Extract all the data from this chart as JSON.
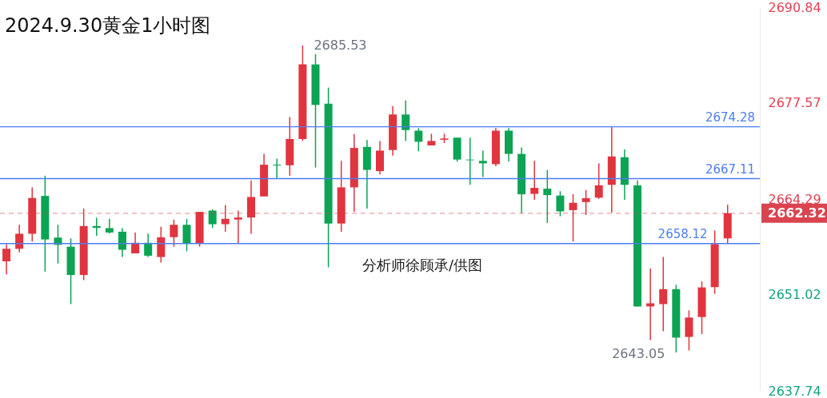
{
  "chart_data": {
    "type": "candlestick",
    "title": "2024.9.30黄金1小时图",
    "categories": [
      null,
      null,
      null,
      null,
      null,
      null,
      null,
      null,
      null,
      null,
      null,
      null,
      null,
      null,
      null,
      null,
      null,
      null,
      null,
      null,
      null,
      null,
      null,
      null,
      null,
      null,
      null,
      null,
      null,
      null,
      null,
      null,
      null,
      null,
      null,
      null,
      null,
      null,
      null,
      null,
      null,
      null,
      null,
      null,
      null,
      null,
      null,
      null,
      null,
      null,
      null,
      null,
      null,
      null,
      null,
      null,
      null
    ],
    "ohlc": [
      [
        2655.66,
        2658.05,
        2653.87,
        2657.4
      ],
      [
        2657.4,
        2660.72,
        2656.91,
        2659.48
      ],
      [
        2659.48,
        2665.9,
        2658.41,
        2664.43
      ],
      [
        2664.72,
        2667.51,
        2654.24,
        2658.69
      ],
      [
        2658.95,
        2660.72,
        2655.37,
        2657.94
      ],
      [
        2657.69,
        2658.84,
        2649.74,
        2653.77
      ],
      [
        2653.77,
        2662.97,
        2653.06,
        2660.55
      ],
      [
        2660.55,
        2661.68,
        2659.19,
        2660.29
      ],
      [
        2660.26,
        2661.55,
        2659.54,
        2659.65
      ],
      [
        2659.76,
        2660.26,
        2656.26,
        2657.26
      ],
      [
        2656.76,
        2659.65,
        2656.76,
        2658.23
      ],
      [
        2658.23,
        2659.48,
        2656.26,
        2656.44
      ],
      [
        2656.26,
        2660.44,
        2655.48,
        2658.98
      ],
      [
        2659.01,
        2661.44,
        2657.69,
        2660.72
      ],
      [
        2660.72,
        2661.55,
        2657.05,
        2658.12
      ],
      [
        2658.12,
        2662.51,
        2657.69,
        2662.51
      ],
      [
        2662.69,
        2662.86,
        2660.29,
        2660.8
      ],
      [
        2660.8,
        2663.47,
        2659.76,
        2661.55
      ],
      [
        2661.44,
        2662.69,
        2658.12,
        2661.73
      ],
      [
        2661.73,
        2666.86,
        2659.48,
        2664.57
      ],
      [
        2664.65,
        2670.53,
        2664.65,
        2669.04
      ],
      [
        2669.04,
        2669.89,
        2667.14,
        2668.93
      ],
      [
        2668.96,
        2675.64,
        2667.51,
        2672.6
      ],
      [
        2672.6,
        2685.53,
        2672.32,
        2682.92
      ],
      [
        2682.92,
        2684.34,
        2668.64,
        2677.31
      ],
      [
        2677.49,
        2679.71,
        2654.84,
        2660.9
      ],
      [
        2660.9,
        2669.57,
        2659.76,
        2665.9
      ],
      [
        2665.9,
        2673.28,
        2662.51,
        2671.36
      ],
      [
        2671.5,
        2672.49,
        2662.97,
        2668.32
      ],
      [
        2668.15,
        2672.32,
        2667.68,
        2670.99
      ],
      [
        2671.07,
        2677.14,
        2670.29,
        2675.99
      ],
      [
        2675.99,
        2677.92,
        2672.32,
        2673.82
      ],
      [
        2673.75,
        2674.1,
        2670.89,
        2672.21
      ],
      [
        2671.71,
        2673.32,
        2671.71,
        2672.32
      ],
      [
        2672.49,
        2673.32,
        2672.03,
        2672.67
      ],
      [
        2672.78,
        2672.78,
        2669.46,
        2669.75
      ],
      [
        2669.75,
        2672.78,
        2666.25,
        2669.65
      ],
      [
        2669.57,
        2670.99,
        2667.32,
        2669.22
      ],
      [
        2669.11,
        2674.1,
        2668.82,
        2673.75
      ],
      [
        2673.75,
        2674.1,
        2669.46,
        2670.53
      ],
      [
        2670.53,
        2671.42,
        2662.33,
        2664.94
      ],
      [
        2665.0,
        2669.57,
        2664.19,
        2665.83
      ],
      [
        2665.72,
        2668.29,
        2660.98,
        2664.83
      ],
      [
        2664.76,
        2665.37,
        2661.9,
        2662.58
      ],
      [
        2662.75,
        2664.94,
        2658.41,
        2663.76
      ],
      [
        2663.87,
        2665.54,
        2662.08,
        2664.4
      ],
      [
        2664.47,
        2669.22,
        2664.3,
        2666.18
      ],
      [
        2666.25,
        2674.28,
        2662.4,
        2670.18
      ],
      [
        2670.07,
        2671.14,
        2664.19,
        2666.25
      ],
      [
        2666.18,
        2666.86,
        2649.42,
        2649.42
      ],
      [
        2649.42,
        2654.66,
        2644.77,
        2649.85
      ],
      [
        2649.74,
        2656.27,
        2645.99,
        2651.81
      ],
      [
        2651.81,
        2652.42,
        2643.05,
        2645.1
      ],
      [
        2645.2,
        2648.88,
        2643.32,
        2647.88
      ],
      [
        2647.95,
        2652.88,
        2645.57,
        2652.05
      ],
      [
        2652.09,
        2659.94,
        2651.16,
        2658.05
      ],
      [
        2658.84,
        2663.5,
        2658.12,
        2662.32
      ]
    ],
    "colors": [
      "#e0343f",
      "#e0343f",
      "#e0343f",
      "#0ba454",
      "#0ba454",
      "#0ba454",
      "#e0343f",
      "#0ba454",
      "#0ba454",
      "#0ba454",
      "#e0343f",
      "#0ba454",
      "#e0343f",
      "#e0343f",
      "#0ba454",
      "#e0343f",
      "#0ba454",
      "#e0343f",
      "#e0343f",
      "#e0343f",
      "#e0343f",
      "#0ba454",
      "#e0343f",
      "#e0343f",
      "#0ba454",
      "#0ba454",
      "#e0343f",
      "#e0343f",
      "#0ba454",
      "#e0343f",
      "#e0343f",
      "#0ba454",
      "#0ba454",
      "#e0343f",
      "#e0343f",
      "#0ba454",
      "#0ba454",
      "#0ba454",
      "#e0343f",
      "#0ba454",
      "#0ba454",
      "#e0343f",
      "#0ba454",
      "#0ba454",
      "#e0343f",
      "#e0343f",
      "#e0343f",
      "#e0343f",
      "#0ba454",
      "#0ba454",
      "#e0343f",
      "#e0343f",
      "#0ba454",
      "#e0343f",
      "#e0343f",
      "#e0343f",
      "#e0343f"
    ],
    "ylim": [
      2637.74,
      2690.84
    ],
    "yticks": [
      2637.74,
      2651.02,
      2664.29,
      2677.57,
      2690.84
    ],
    "tick_labels": "y",
    "ref_lines": [
      {
        "axis": "y",
        "value": 2674.28,
        "label": "2674.28",
        "color": "#4a7ef0",
        "line_style": "solid"
      },
      {
        "axis": "y",
        "value": 2667.11,
        "label": "2667.11",
        "color": "#4a7ef0",
        "line_style": "solid"
      },
      {
        "axis": "y",
        "value": 2658.12,
        "label": "2658.12",
        "color": "#4a7ef0",
        "line_style": "solid"
      },
      {
        "axis": "y",
        "value": 2662.32,
        "label": "2662.32",
        "color": "#d9444f",
        "line_style": "dashed"
      }
    ],
    "annotations": [
      "2685.53",
      "2643.05",
      "分析师徐顾承/供图"
    ]
  }
}
